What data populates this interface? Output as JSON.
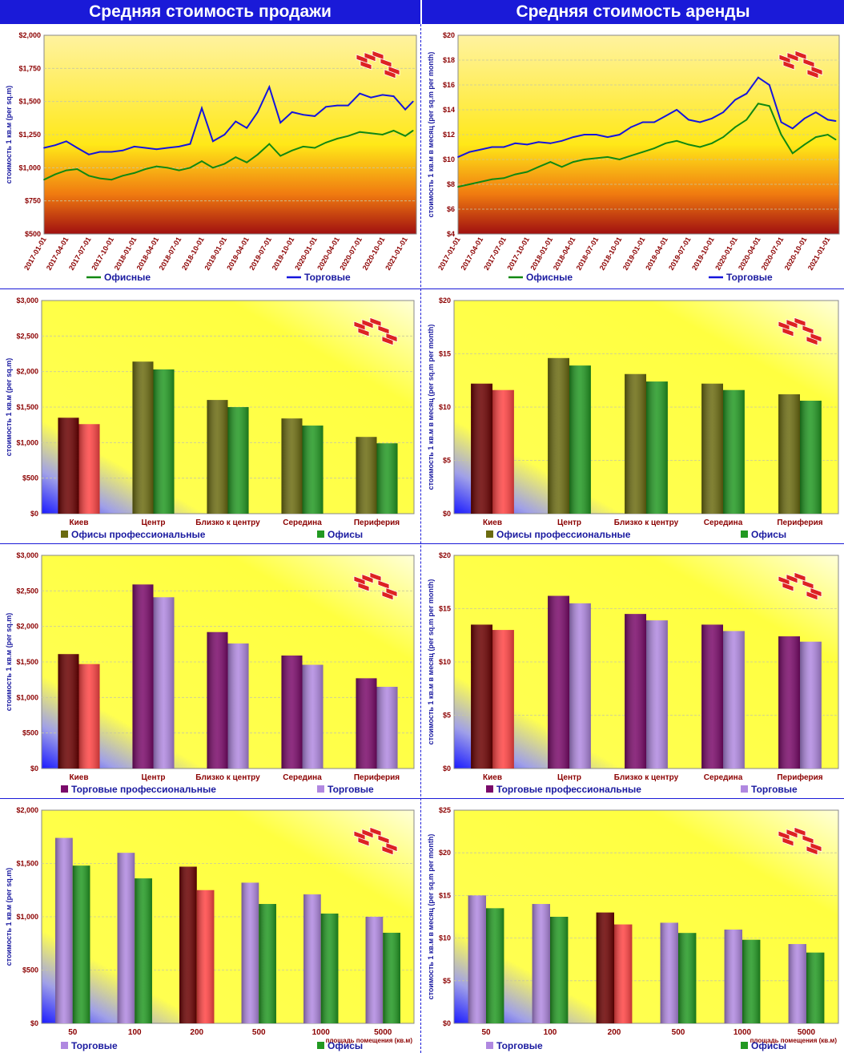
{
  "headers": {
    "left": "Средняя стоимость продажи",
    "right": "Средняя стоимость аренды"
  },
  "colors": {
    "header_bg": "#1a1ad8",
    "offices_line": "#118811",
    "retail_line": "#1515dd"
  },
  "logo": "stacked-bricks-logo",
  "chart_data": [
    {
      "id": "sale-timeseries",
      "type": "line",
      "ylabel": "стоимость 1 кв.м (per sq.m)",
      "ylim": [
        500,
        2000
      ],
      "yticks": [
        500,
        750,
        1000,
        1250,
        1500,
        1750,
        2000
      ],
      "ytick_labels": [
        "$500",
        "$750",
        "$1,000",
        "$1,250",
        "$1,500",
        "$1,750",
        "$2,000"
      ],
      "xlim": [
        "2017-01-01",
        "2021-02-15"
      ],
      "x_tick_labels": [
        "2017-01-01",
        "2017-04-01",
        "2017-07-01",
        "2017-10-01",
        "2018-01-01",
        "2018-04-01",
        "2018-07-01",
        "2018-10-01",
        "2019-01-01",
        "2019-04-01",
        "2019-07-01",
        "2019-10-01",
        "2020-01-01",
        "2020-04-01",
        "2020-07-01",
        "2020-10-01",
        "2021-01-01"
      ],
      "series": [
        {
          "name": "Офисные",
          "color": "#118811",
          "x": [
            "2017-01-01",
            "2017-02-15",
            "2017-04-01",
            "2017-05-15",
            "2017-07-01",
            "2017-08-15",
            "2017-10-01",
            "2017-11-15",
            "2018-01-01",
            "2018-02-15",
            "2018-04-01",
            "2018-05-15",
            "2018-07-01",
            "2018-08-15",
            "2018-10-01",
            "2018-11-15",
            "2019-01-01",
            "2019-02-15",
            "2019-04-01",
            "2019-05-15",
            "2019-07-01",
            "2019-08-15",
            "2019-10-01",
            "2019-11-15",
            "2020-01-01",
            "2020-02-15",
            "2020-04-01",
            "2020-05-15",
            "2020-07-01",
            "2020-08-15",
            "2020-10-01",
            "2020-11-15",
            "2021-01-01",
            "2021-02-01"
          ],
          "values": [
            910,
            950,
            980,
            990,
            940,
            920,
            910,
            940,
            960,
            990,
            1010,
            1000,
            980,
            1000,
            1050,
            1000,
            1030,
            1080,
            1040,
            1100,
            1180,
            1090,
            1130,
            1160,
            1150,
            1190,
            1220,
            1240,
            1270,
            1260,
            1250,
            1280,
            1240,
            1280
          ]
        },
        {
          "name": "Торговые",
          "color": "#1515dd",
          "x": [
            "2017-01-01",
            "2017-02-15",
            "2017-04-01",
            "2017-05-15",
            "2017-07-01",
            "2017-08-15",
            "2017-10-01",
            "2017-11-15",
            "2018-01-01",
            "2018-02-15",
            "2018-04-01",
            "2018-05-15",
            "2018-07-01",
            "2018-08-15",
            "2018-10-01",
            "2018-11-15",
            "2019-01-01",
            "2019-02-15",
            "2019-04-01",
            "2019-05-15",
            "2019-07-01",
            "2019-08-15",
            "2019-10-01",
            "2019-11-15",
            "2020-01-01",
            "2020-02-15",
            "2020-04-01",
            "2020-05-15",
            "2020-07-01",
            "2020-08-15",
            "2020-10-01",
            "2020-11-15",
            "2021-01-01",
            "2021-02-01"
          ],
          "values": [
            1150,
            1170,
            1200,
            1150,
            1100,
            1120,
            1120,
            1130,
            1160,
            1150,
            1140,
            1150,
            1160,
            1180,
            1450,
            1200,
            1250,
            1350,
            1300,
            1420,
            1610,
            1340,
            1420,
            1400,
            1390,
            1460,
            1470,
            1470,
            1560,
            1530,
            1550,
            1540,
            1440,
            1500
          ]
        }
      ],
      "legend": [
        {
          "name": "Офисные",
          "color": "#118811"
        },
        {
          "name": "Торговые",
          "color": "#1515dd"
        }
      ]
    },
    {
      "id": "rent-timeseries",
      "type": "line",
      "ylabel": "стоимость 1 кв.м в месяц (per sq.m per month)",
      "ylim": [
        4,
        20
      ],
      "yticks": [
        4,
        6,
        8,
        10,
        12,
        14,
        16,
        18,
        20
      ],
      "ytick_labels": [
        "$4",
        "$6",
        "$8",
        "$10",
        "$12",
        "$14",
        "$16",
        "$18",
        "$20"
      ],
      "xlim": [
        "2017-01-01",
        "2021-02-15"
      ],
      "x_tick_labels": [
        "2017-01-01",
        "2017-04-01",
        "2017-07-01",
        "2017-10-01",
        "2018-01-01",
        "2018-04-01",
        "2018-07-01",
        "2018-10-01",
        "2019-01-01",
        "2019-04-01",
        "2019-07-01",
        "2019-10-01",
        "2020-01-01",
        "2020-04-01",
        "2020-07-01",
        "2020-10-01",
        "2021-01-01"
      ],
      "series": [
        {
          "name": "Офисные",
          "color": "#118811",
          "x": [
            "2017-01-01",
            "2017-02-15",
            "2017-04-01",
            "2017-05-15",
            "2017-07-01",
            "2017-08-15",
            "2017-10-01",
            "2017-11-15",
            "2018-01-01",
            "2018-02-15",
            "2018-04-01",
            "2018-05-15",
            "2018-07-01",
            "2018-08-15",
            "2018-10-01",
            "2018-11-15",
            "2019-01-01",
            "2019-02-15",
            "2019-04-01",
            "2019-05-15",
            "2019-07-01",
            "2019-08-15",
            "2019-10-01",
            "2019-11-15",
            "2020-01-01",
            "2020-02-15",
            "2020-04-01",
            "2020-05-15",
            "2020-07-01",
            "2020-08-15",
            "2020-10-01",
            "2020-11-15",
            "2021-01-01",
            "2021-02-01"
          ],
          "values": [
            7.8,
            8.0,
            8.2,
            8.4,
            8.5,
            8.8,
            9.0,
            9.4,
            9.8,
            9.4,
            9.8,
            10.0,
            10.1,
            10.2,
            10.0,
            10.3,
            10.6,
            10.9,
            11.3,
            11.5,
            11.2,
            11.0,
            11.3,
            11.8,
            12.6,
            13.2,
            14.5,
            14.3,
            12.0,
            10.5,
            11.2,
            11.8,
            12.0,
            11.6
          ]
        },
        {
          "name": "Торговые",
          "color": "#1515dd",
          "x": [
            "2017-01-01",
            "2017-02-15",
            "2017-04-01",
            "2017-05-15",
            "2017-07-01",
            "2017-08-15",
            "2017-10-01",
            "2017-11-15",
            "2018-01-01",
            "2018-02-15",
            "2018-04-01",
            "2018-05-15",
            "2018-07-01",
            "2018-08-15",
            "2018-10-01",
            "2018-11-15",
            "2019-01-01",
            "2019-02-15",
            "2019-04-01",
            "2019-05-15",
            "2019-07-01",
            "2019-08-15",
            "2019-10-01",
            "2019-11-15",
            "2020-01-01",
            "2020-02-15",
            "2020-04-01",
            "2020-05-15",
            "2020-07-01",
            "2020-08-15",
            "2020-10-01",
            "2020-11-15",
            "2021-01-01",
            "2021-02-01"
          ],
          "values": [
            10.2,
            10.6,
            10.8,
            11.0,
            11.0,
            11.3,
            11.2,
            11.4,
            11.3,
            11.5,
            11.8,
            12.0,
            12.0,
            11.8,
            12.0,
            12.6,
            13.0,
            13.0,
            13.5,
            14.0,
            13.2,
            13.0,
            13.3,
            13.8,
            14.8,
            15.3,
            16.6,
            16.0,
            13.0,
            12.5,
            13.3,
            13.8,
            13.2,
            13.1
          ]
        }
      ],
      "legend": [
        {
          "name": "Офисные",
          "color": "#118811"
        },
        {
          "name": "Торговые",
          "color": "#1515dd"
        }
      ]
    },
    {
      "id": "sale-offices-districts",
      "type": "bar",
      "ylabel": "стоимость 1 кв.м (per sq.m)",
      "ylim": [
        0,
        3000
      ],
      "yticks": [
        0,
        500,
        1000,
        1500,
        2000,
        2500,
        3000
      ],
      "ytick_labels": [
        "$0",
        "$500",
        "$1,000",
        "$1,500",
        "$2,000",
        "$2,500",
        "$3,000"
      ],
      "categories": [
        "Киев",
        "Центр",
        "Близко к центру",
        "Середина",
        "Периферия"
      ],
      "highlight_index": 0,
      "series": [
        {
          "name": "Офисы профессиональные",
          "color": "#6b6b10",
          "values": [
            1350,
            2140,
            1600,
            1340,
            1080
          ]
        },
        {
          "name": "Офисы",
          "color": "#229922",
          "values": [
            1260,
            2030,
            1500,
            1240,
            990
          ]
        }
      ],
      "highlight_colors": [
        "#6a0000",
        "#ff4444"
      ],
      "legend": [
        {
          "name": "Офисы профессиональные",
          "color": "#6b6b10"
        },
        {
          "name": "Офисы",
          "color": "#229922"
        }
      ]
    },
    {
      "id": "rent-offices-districts",
      "type": "bar",
      "ylabel": "стоимость 1 кв.м в месяц (per sq.m per month)",
      "ylim": [
        0,
        20
      ],
      "yticks": [
        0,
        5,
        10,
        15,
        20
      ],
      "ytick_labels": [
        "$0",
        "$5",
        "$10",
        "$15",
        "$20"
      ],
      "categories": [
        "Киев",
        "Центр",
        "Близко к центру",
        "Середина",
        "Периферия"
      ],
      "highlight_index": 0,
      "series": [
        {
          "name": "Офисы профессиональные",
          "color": "#6b6b10",
          "values": [
            12.2,
            14.6,
            13.1,
            12.2,
            11.2
          ]
        },
        {
          "name": "Офисы",
          "color": "#229922",
          "values": [
            11.6,
            13.9,
            12.4,
            11.6,
            10.6
          ]
        }
      ],
      "highlight_colors": [
        "#6a0000",
        "#ff4444"
      ],
      "legend": [
        {
          "name": "Офисы профессиональные",
          "color": "#6b6b10"
        },
        {
          "name": "Офисы",
          "color": "#229922"
        }
      ]
    },
    {
      "id": "sale-retail-districts",
      "type": "bar",
      "ylabel": "стоимость 1 кв.м (per sq.m)",
      "ylim": [
        0,
        3000
      ],
      "yticks": [
        0,
        500,
        1000,
        1500,
        2000,
        2500,
        3000
      ],
      "ytick_labels": [
        "$0",
        "$500",
        "$1,000",
        "$1,500",
        "$2,000",
        "$2,500",
        "$3,000"
      ],
      "categories": [
        "Киев",
        "Центр",
        "Близко к центру",
        "Середина",
        "Периферия"
      ],
      "highlight_index": 0,
      "series": [
        {
          "name": "Торговые профессиональные",
          "color": "#7a0a6a",
          "values": [
            1610,
            2590,
            1920,
            1590,
            1270
          ]
        },
        {
          "name": "Торговые",
          "color": "#b088e0",
          "values": [
            1470,
            2410,
            1760,
            1460,
            1150
          ]
        }
      ],
      "highlight_colors": [
        "#6a0000",
        "#ff4444"
      ],
      "legend": [
        {
          "name": "Торговые профессиональные",
          "color": "#7a0a6a"
        },
        {
          "name": "Торговые",
          "color": "#b088e0"
        }
      ]
    },
    {
      "id": "rent-retail-districts",
      "type": "bar",
      "ylabel": "стоимость 1 кв.м в месяц (per sq.m per month)",
      "ylim": [
        0,
        20
      ],
      "yticks": [
        0,
        5,
        10,
        15,
        20
      ],
      "ytick_labels": [
        "$0",
        "$5",
        "$10",
        "$15",
        "$20"
      ],
      "categories": [
        "Киев",
        "Центр",
        "Близко к центру",
        "Середина",
        "Периферия"
      ],
      "highlight_index": 0,
      "series": [
        {
          "name": "Торговые профессиональные",
          "color": "#7a0a6a",
          "values": [
            13.5,
            16.2,
            14.5,
            13.5,
            12.4
          ]
        },
        {
          "name": "Торговые",
          "color": "#b088e0",
          "values": [
            13.0,
            15.5,
            13.9,
            12.9,
            11.9
          ]
        }
      ],
      "highlight_colors": [
        "#6a0000",
        "#ff4444"
      ],
      "legend": [
        {
          "name": "Торговые профессиональные",
          "color": "#7a0a6a"
        },
        {
          "name": "Торговые",
          "color": "#b088e0"
        }
      ]
    },
    {
      "id": "sale-by-area",
      "type": "bar",
      "ylabel": "стоимость 1 кв.м (per sq.m)",
      "xlabel": "площадь помещения (кв.м)",
      "ylim": [
        0,
        2000
      ],
      "yticks": [
        0,
        500,
        1000,
        1500,
        2000
      ],
      "ytick_labels": [
        "$0",
        "$500",
        "$1,000",
        "$1,500",
        "$2,000"
      ],
      "categories": [
        "50",
        "100",
        "200",
        "500",
        "1000",
        "5000"
      ],
      "highlight_index": 2,
      "series": [
        {
          "name": "Торговые",
          "color": "#b088e0",
          "values": [
            1740,
            1600,
            1470,
            1320,
            1210,
            1000
          ]
        },
        {
          "name": "Офисы",
          "color": "#229922",
          "values": [
            1480,
            1360,
            1250,
            1120,
            1030,
            850
          ]
        }
      ],
      "highlight_colors": [
        "#6a0000",
        "#ff4444"
      ],
      "legend": [
        {
          "name": "Торговые",
          "color": "#b088e0"
        },
        {
          "name": "Офисы",
          "color": "#229922"
        }
      ]
    },
    {
      "id": "rent-by-area",
      "type": "bar",
      "ylabel": "стоимость 1 кв.м в месяц (per sq.m per month)",
      "xlabel": "площадь помещения (кв.м)",
      "ylim": [
        0,
        25
      ],
      "yticks": [
        0,
        5,
        10,
        15,
        20,
        25
      ],
      "ytick_labels": [
        "$0",
        "$5",
        "$10",
        "$15",
        "$20",
        "$25"
      ],
      "categories": [
        "50",
        "100",
        "200",
        "500",
        "1000",
        "5000"
      ],
      "highlight_index": 2,
      "series": [
        {
          "name": "Торговые",
          "color": "#b088e0",
          "values": [
            15.0,
            14.0,
            13.0,
            11.8,
            11.0,
            9.3
          ]
        },
        {
          "name": "Офисы",
          "color": "#229922",
          "values": [
            13.5,
            12.5,
            11.6,
            10.6,
            9.8,
            8.3
          ]
        }
      ],
      "highlight_colors": [
        "#6a0000",
        "#ff4444"
      ],
      "legend": [
        {
          "name": "Торговые",
          "color": "#b088e0"
        },
        {
          "name": "Офисы",
          "color": "#229922"
        }
      ]
    }
  ]
}
